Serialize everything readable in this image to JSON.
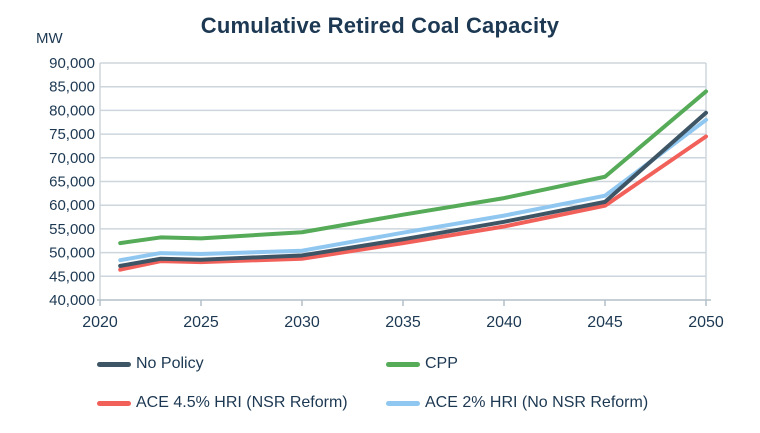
{
  "title": "Cumulative Retired Coal Capacity",
  "colors": {
    "text": "#1c3852",
    "grid": "#cdd6dc",
    "axis": "#b3bfc7",
    "background": "#ffffff",
    "no_policy": "#3e5566",
    "cpp": "#55ab57",
    "ace_45_hri": "#f2605a",
    "ace_2_hri": "#90c7f0"
  },
  "chart_data": {
    "type": "line",
    "title": "Cumulative Retired Coal Capacity",
    "xlabel": "",
    "ylabel": "MW",
    "xlim": [
      2020,
      2050
    ],
    "ylim": [
      40000,
      90000
    ],
    "x_ticks": [
      2020,
      2025,
      2030,
      2035,
      2040,
      2045,
      2050
    ],
    "y_ticks": [
      90000,
      85000,
      80000,
      75000,
      70000,
      65000,
      60000,
      55000,
      50000,
      45000,
      40000
    ],
    "grid": true,
    "legend_position": "bottom",
    "x": [
      2021,
      2023,
      2025,
      2030,
      2035,
      2040,
      2045,
      2050
    ],
    "series": [
      {
        "name": "No Policy",
        "color": "#3e5566",
        "values": [
          47200,
          48700,
          48500,
          49400,
          52800,
          56500,
          60700,
          79500
        ]
      },
      {
        "name": "CPP",
        "color": "#55ab57",
        "values": [
          52000,
          53200,
          53000,
          54300,
          58000,
          61500,
          66000,
          84000
        ]
      },
      {
        "name": "ACE 4.5% HRI (NSR Reform)",
        "color": "#f2605a",
        "values": [
          46400,
          48200,
          48000,
          48700,
          52000,
          55500,
          59900,
          74500
        ]
      },
      {
        "name": "ACE 2% HRI (No NSR Reform)",
        "color": "#90c7f0",
        "values": [
          48400,
          49900,
          49700,
          50400,
          54200,
          57800,
          62000,
          78000
        ]
      }
    ],
    "draw_order": [
      "CPP",
      "ACE 2% HRI (No NSR Reform)",
      "ACE 4.5% HRI (NSR Reform)",
      "No Policy"
    ]
  }
}
